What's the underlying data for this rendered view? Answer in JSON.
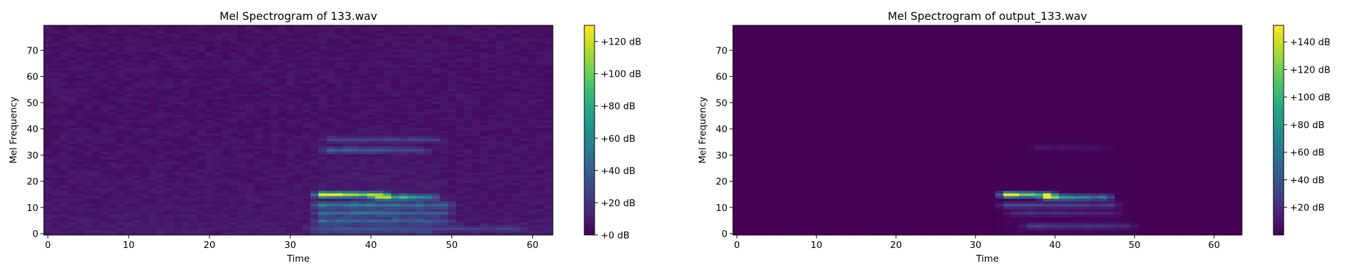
{
  "chart_data": [
    {
      "type": "heatmap",
      "title": "Mel Spectrogram of 133.wav",
      "xlabel": "Time",
      "ylabel": "Mel Frequency",
      "xlim": [
        -0.5,
        62.5
      ],
      "ylim": [
        -0.5,
        79.5
      ],
      "xticks": [
        0,
        10,
        20,
        30,
        40,
        50,
        60
      ],
      "yticks": [
        0,
        10,
        20,
        30,
        40,
        50,
        60,
        70
      ],
      "colormap": "viridis",
      "colorbar": {
        "min": 0,
        "max": 130,
        "ticks": [
          0,
          20,
          40,
          60,
          80,
          100,
          120
        ],
        "tick_labels": [
          "+0 dB",
          "+20 dB",
          "+40 dB",
          "+60 dB",
          "+80 dB",
          "+100 dB",
          "+120 dB"
        ]
      },
      "n_frames": 63,
      "n_mels": 80,
      "background_level": 7,
      "voiced_span": [
        33,
        49
      ],
      "features": [
        {
          "mel": 15,
          "t_start": 34,
          "t_end": 41,
          "peak": 130,
          "label": "brightest harmonic"
        },
        {
          "mel": 14,
          "t_start": 41,
          "t_end": 47,
          "peak": 85
        },
        {
          "mel": 11,
          "t_start": 34,
          "t_end": 49,
          "peak": 48
        },
        {
          "mel": 8,
          "t_start": 34,
          "t_end": 49,
          "peak": 40
        },
        {
          "mel": 5,
          "t_start": 34,
          "t_end": 49,
          "peak": 32
        },
        {
          "mel": 2,
          "t_start": 33,
          "t_end": 58,
          "peak": 18
        },
        {
          "mel": 32,
          "t_start": 35,
          "t_end": 46,
          "peak": 35
        },
        {
          "mel": 36,
          "t_start": 35,
          "t_end": 48,
          "peak": 24
        }
      ]
    },
    {
      "type": "heatmap",
      "title": "Mel Spectrogram of output_133.wav",
      "xlabel": "Time",
      "ylabel": "Mel Frequency",
      "xlim": [
        -0.5,
        63.5
      ],
      "ylim": [
        -0.5,
        79.5
      ],
      "xticks": [
        0,
        10,
        20,
        30,
        40,
        50,
        60
      ],
      "yticks": [
        0,
        10,
        20,
        30,
        40,
        50,
        60,
        70
      ],
      "colormap": "viridis",
      "colorbar": {
        "min": 0,
        "max": 152,
        "ticks": [
          20,
          40,
          60,
          80,
          100,
          120,
          140
        ],
        "tick_labels": [
          "+20 dB",
          "+40 dB",
          "+60 dB",
          "+80 dB",
          "+100 dB",
          "+120 dB",
          "+140 dB"
        ]
      },
      "n_frames": 64,
      "n_mels": 80,
      "background_level": 0,
      "voiced_span": [
        33,
        50
      ],
      "features": [
        {
          "mel": 15,
          "t_start": 34,
          "t_end": 39,
          "peak": 150,
          "label": "brightest harmonic"
        },
        {
          "mel": 14,
          "t_start": 39,
          "t_end": 46,
          "peak": 95
        },
        {
          "mel": 11,
          "t_start": 34,
          "t_end": 47,
          "peak": 38
        },
        {
          "mel": 8,
          "t_start": 35,
          "t_end": 47,
          "peak": 24
        },
        {
          "mel": 3,
          "t_start": 37,
          "t_end": 49,
          "peak": 26
        },
        {
          "mel": 33,
          "t_start": 38,
          "t_end": 46,
          "peak": 10
        }
      ]
    }
  ]
}
